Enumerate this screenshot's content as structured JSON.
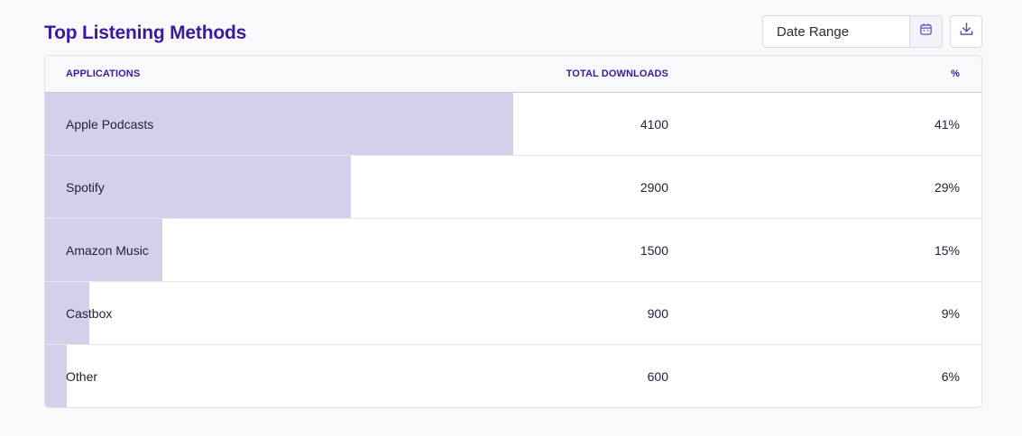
{
  "header": {
    "title": "Top Listening Methods",
    "date_range_placeholder": "Date Range",
    "calendar_icon": "calendar-icon",
    "download_icon": "download-icon"
  },
  "table": {
    "columns": {
      "application": "APPLICATIONS",
      "downloads": "TOTAL DOWNLOADS",
      "percent": "%"
    },
    "rows": [
      {
        "application": "Apple Podcasts",
        "downloads": "4100",
        "percent": "41%",
        "share": 0.5
      },
      {
        "application": "Spotify",
        "downloads": "2900",
        "percent": "29%",
        "share": 0.327
      },
      {
        "application": "Amazon Music",
        "downloads": "1500",
        "percent": "15%",
        "share": 0.125
      },
      {
        "application": "Castbox",
        "downloads": "900",
        "percent": "9%",
        "share": 0.047
      },
      {
        "application": "Other",
        "downloads": "600",
        "percent": "6%",
        "share": 0.023
      }
    ]
  },
  "colors": {
    "title": "#3b1a9e",
    "bar": "#d5d0ea",
    "icon": "#6a4fb8"
  }
}
